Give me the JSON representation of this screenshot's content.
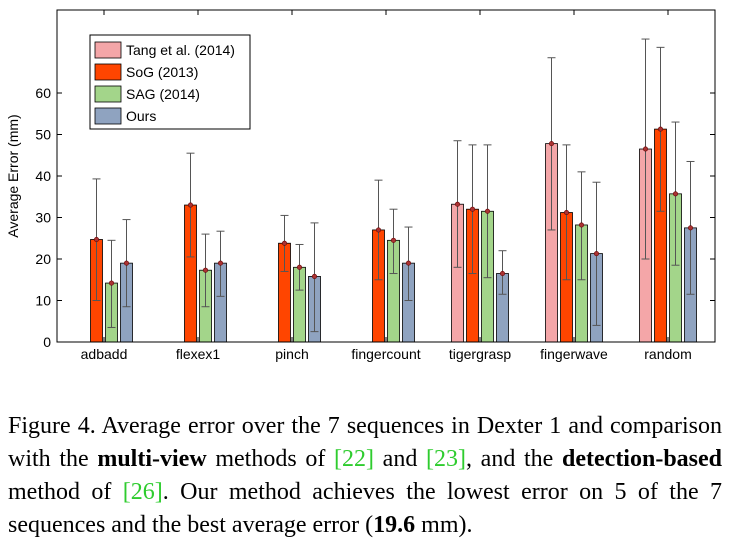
{
  "chart_data": {
    "type": "bar",
    "ylabel": "Average Error (mm)",
    "xlabel": "",
    "ylim": [
      0,
      80
    ],
    "yticks": [
      0,
      10,
      20,
      30,
      40,
      50,
      60
    ],
    "legend_position": "top-left",
    "grid": false,
    "categories": [
      "adbadd",
      "flexex1",
      "pinch",
      "fingercount",
      "tigergrasp",
      "fingerwave",
      "random"
    ],
    "series": [
      {
        "name": "Tang et al. (2014)",
        "color": "#f4a6a8",
        "values": [
          null,
          null,
          null,
          null,
          33.2,
          47.8,
          46.5
        ],
        "err_low": [
          null,
          null,
          null,
          null,
          18.0,
          27.0,
          20.0
        ],
        "err_high": [
          null,
          null,
          null,
          null,
          48.5,
          68.5,
          73.0
        ]
      },
      {
        "name": "SoG (2013)",
        "color": "#ff4500",
        "values": [
          24.7,
          33.0,
          23.8,
          27.0,
          32.0,
          31.2,
          51.3
        ],
        "err_low": [
          10.0,
          20.5,
          17.0,
          15.0,
          16.5,
          15.0,
          31.5
        ],
        "err_high": [
          39.3,
          45.5,
          30.5,
          39.0,
          47.5,
          47.5,
          71.0
        ]
      },
      {
        "name": "SAG (2014)",
        "color": "#a3d58a",
        "values": [
          14.2,
          17.3,
          18.0,
          24.5,
          31.5,
          28.2,
          35.7
        ],
        "err_low": [
          3.5,
          8.5,
          12.5,
          16.5,
          15.5,
          15.0,
          18.5
        ],
        "err_high": [
          24.5,
          26.0,
          23.5,
          32.0,
          47.5,
          41.0,
          53.0
        ]
      },
      {
        "name": "Ours",
        "color": "#8fa3c0",
        "values": [
          19.0,
          19.0,
          15.8,
          19.0,
          16.5,
          21.3,
          27.5
        ],
        "err_low": [
          8.5,
          11.0,
          2.5,
          10.0,
          11.5,
          4.0,
          11.5
        ],
        "err_high": [
          29.5,
          26.7,
          28.7,
          27.7,
          22.0,
          38.5,
          43.5
        ]
      }
    ]
  },
  "caption": {
    "part1": "Figure 4. Average error over the 7 sequences in Dexter 1 and comparison with the ",
    "bold1": "multi-view",
    "part2": " methods of ",
    "ref1": "[22]",
    "part3": " and ",
    "ref2": "[23]",
    "part4": ", and the ",
    "bold2": "detection-based",
    "part5": " method of ",
    "ref3": "[26]",
    "part6": ". Our method achieves the lowest error on 5 of the 7 sequences and the best average error (",
    "bold3": "19.6",
    "part7": " mm)."
  }
}
